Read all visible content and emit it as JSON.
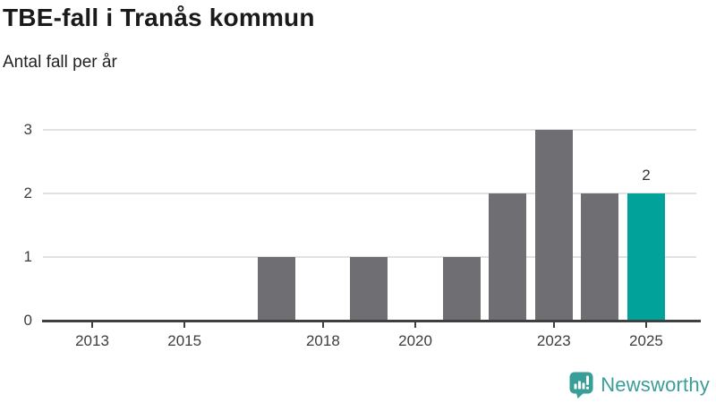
{
  "header": {
    "title": "TBE-fall i Tranås kommun",
    "subtitle": "Antal fall per år"
  },
  "chart_data": {
    "type": "bar",
    "title": "TBE-fall i Tranås kommun",
    "subtitle": "Antal fall per år",
    "categories": [
      "2013",
      "2014",
      "2015",
      "2016",
      "2017",
      "2018",
      "2019",
      "2020",
      "2021",
      "2022",
      "2023",
      "2024",
      "2025"
    ],
    "values": [
      0,
      0,
      0,
      0,
      1,
      0,
      1,
      0,
      1,
      2,
      3,
      2,
      2
    ],
    "highlight_index": 12,
    "highlight_value_label": "2",
    "x_tick_labels": [
      "2013",
      "2015",
      "2018",
      "2020",
      "2023",
      "2025"
    ],
    "y_ticks": [
      0,
      1,
      2,
      3
    ],
    "ylim": [
      0,
      3
    ],
    "xlabel": "",
    "ylabel": "Antal fall per år",
    "grid": "horizontal",
    "legend": "none",
    "bar_color": "#6e6e73",
    "highlight_color": "#00a29a"
  },
  "colors": {
    "bar_gray": "#6e6e73",
    "accent_teal": "#00a29a",
    "brand_teal": "#3a9e98",
    "axis": "#404040",
    "gridline": "#e1e1e1"
  },
  "footer": {
    "brand": "Newsworthy"
  }
}
